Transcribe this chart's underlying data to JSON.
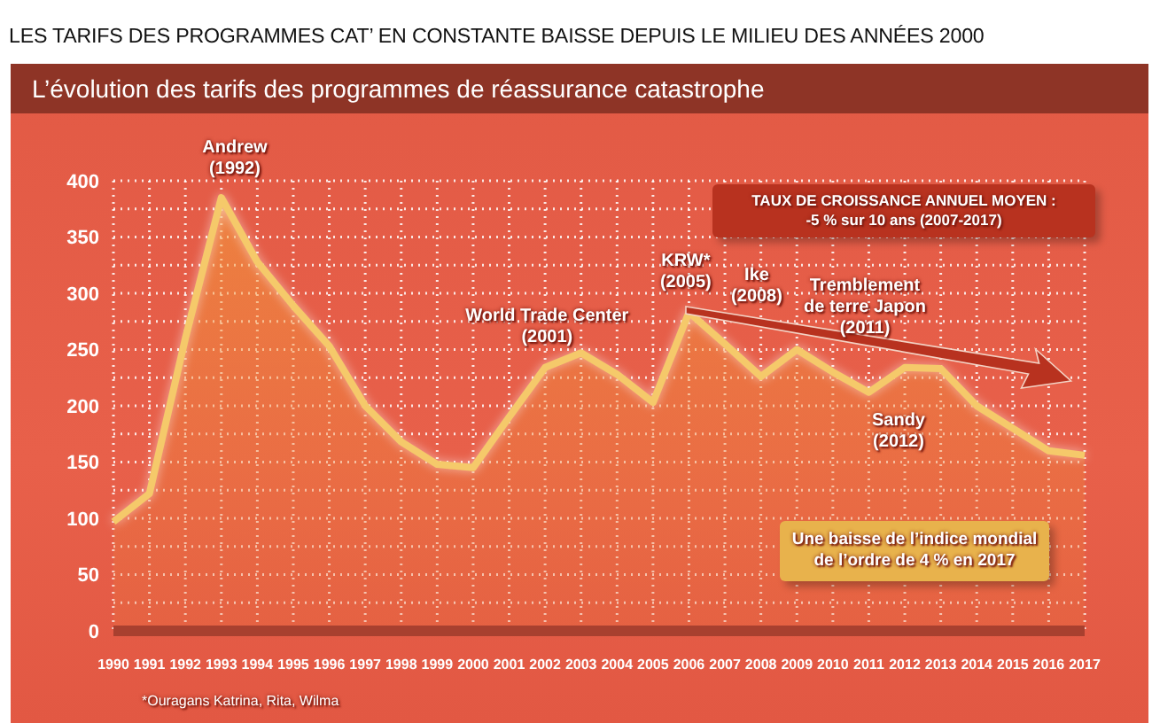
{
  "chart_data": {
    "type": "area",
    "title": "LES TARIFS DES PROGRAMMES CAT’ EN CONSTANTE BAISSE DEPUIS LE MILIEU DES ANNÉES 2000",
    "subtitle": "L’évolution des tarifs des programmes de réassurance catastrophe",
    "categories": [
      "1990",
      "1991",
      "1992",
      "1993",
      "1994",
      "1995",
      "1996",
      "1997",
      "1998",
      "1999",
      "2000",
      "2001",
      "2002",
      "2003",
      "2004",
      "2005",
      "2006",
      "2007",
      "2008",
      "2009",
      "2010",
      "2011",
      "2012",
      "2013",
      "2014",
      "2015",
      "2016",
      "2017"
    ],
    "series": [
      {
        "color": "#f5c96a",
        "values": [
          97,
          122,
          260,
          385,
          328,
          289,
          253,
          200,
          168,
          148,
          145,
          190,
          234,
          247,
          228,
          203,
          283,
          255,
          226,
          250,
          230,
          212,
          234,
          233,
          200,
          180,
          160,
          156
        ]
      }
    ],
    "ylim": [
      0,
      400
    ],
    "yticks": [
      0,
      {
        "value": 25,
        "label": null
      },
      50,
      {
        "value": 75,
        "label": null
      },
      100,
      {
        "value": 125,
        "label": null
      },
      150,
      {
        "value": 175,
        "label": null
      },
      200,
      {
        "value": 225,
        "label": null
      },
      250,
      {
        "value": 275,
        "label": null
      },
      300,
      {
        "value": 325,
        "label": null
      },
      350,
      {
        "value": 375,
        "label": null
      },
      400
    ],
    "grid": true,
    "annotations": [
      {
        "text": "Andrew\n(1992)",
        "x": "1993",
        "y": 385
      },
      {
        "text": "World Trade Center\n(2001)",
        "x": "2002",
        "y": 234
      },
      {
        "text": "KRW*\n(2005)",
        "x": "2006",
        "y": 283
      },
      "Ike\n(2008)",
      "Tremblement\nde terre Japon\n(2011)",
      "Sandy\n(2012)",
      "Une baisse de l’indice mondial\nde l’ordre de 4 % en 2017",
      "TAUX DE CROISSANCE ANNUEL MOYEN :\n-5 % sur 10 ans (2007-2017)",
      "*Ouragans Katrina, Rita, Wilma"
    ]
  }
}
